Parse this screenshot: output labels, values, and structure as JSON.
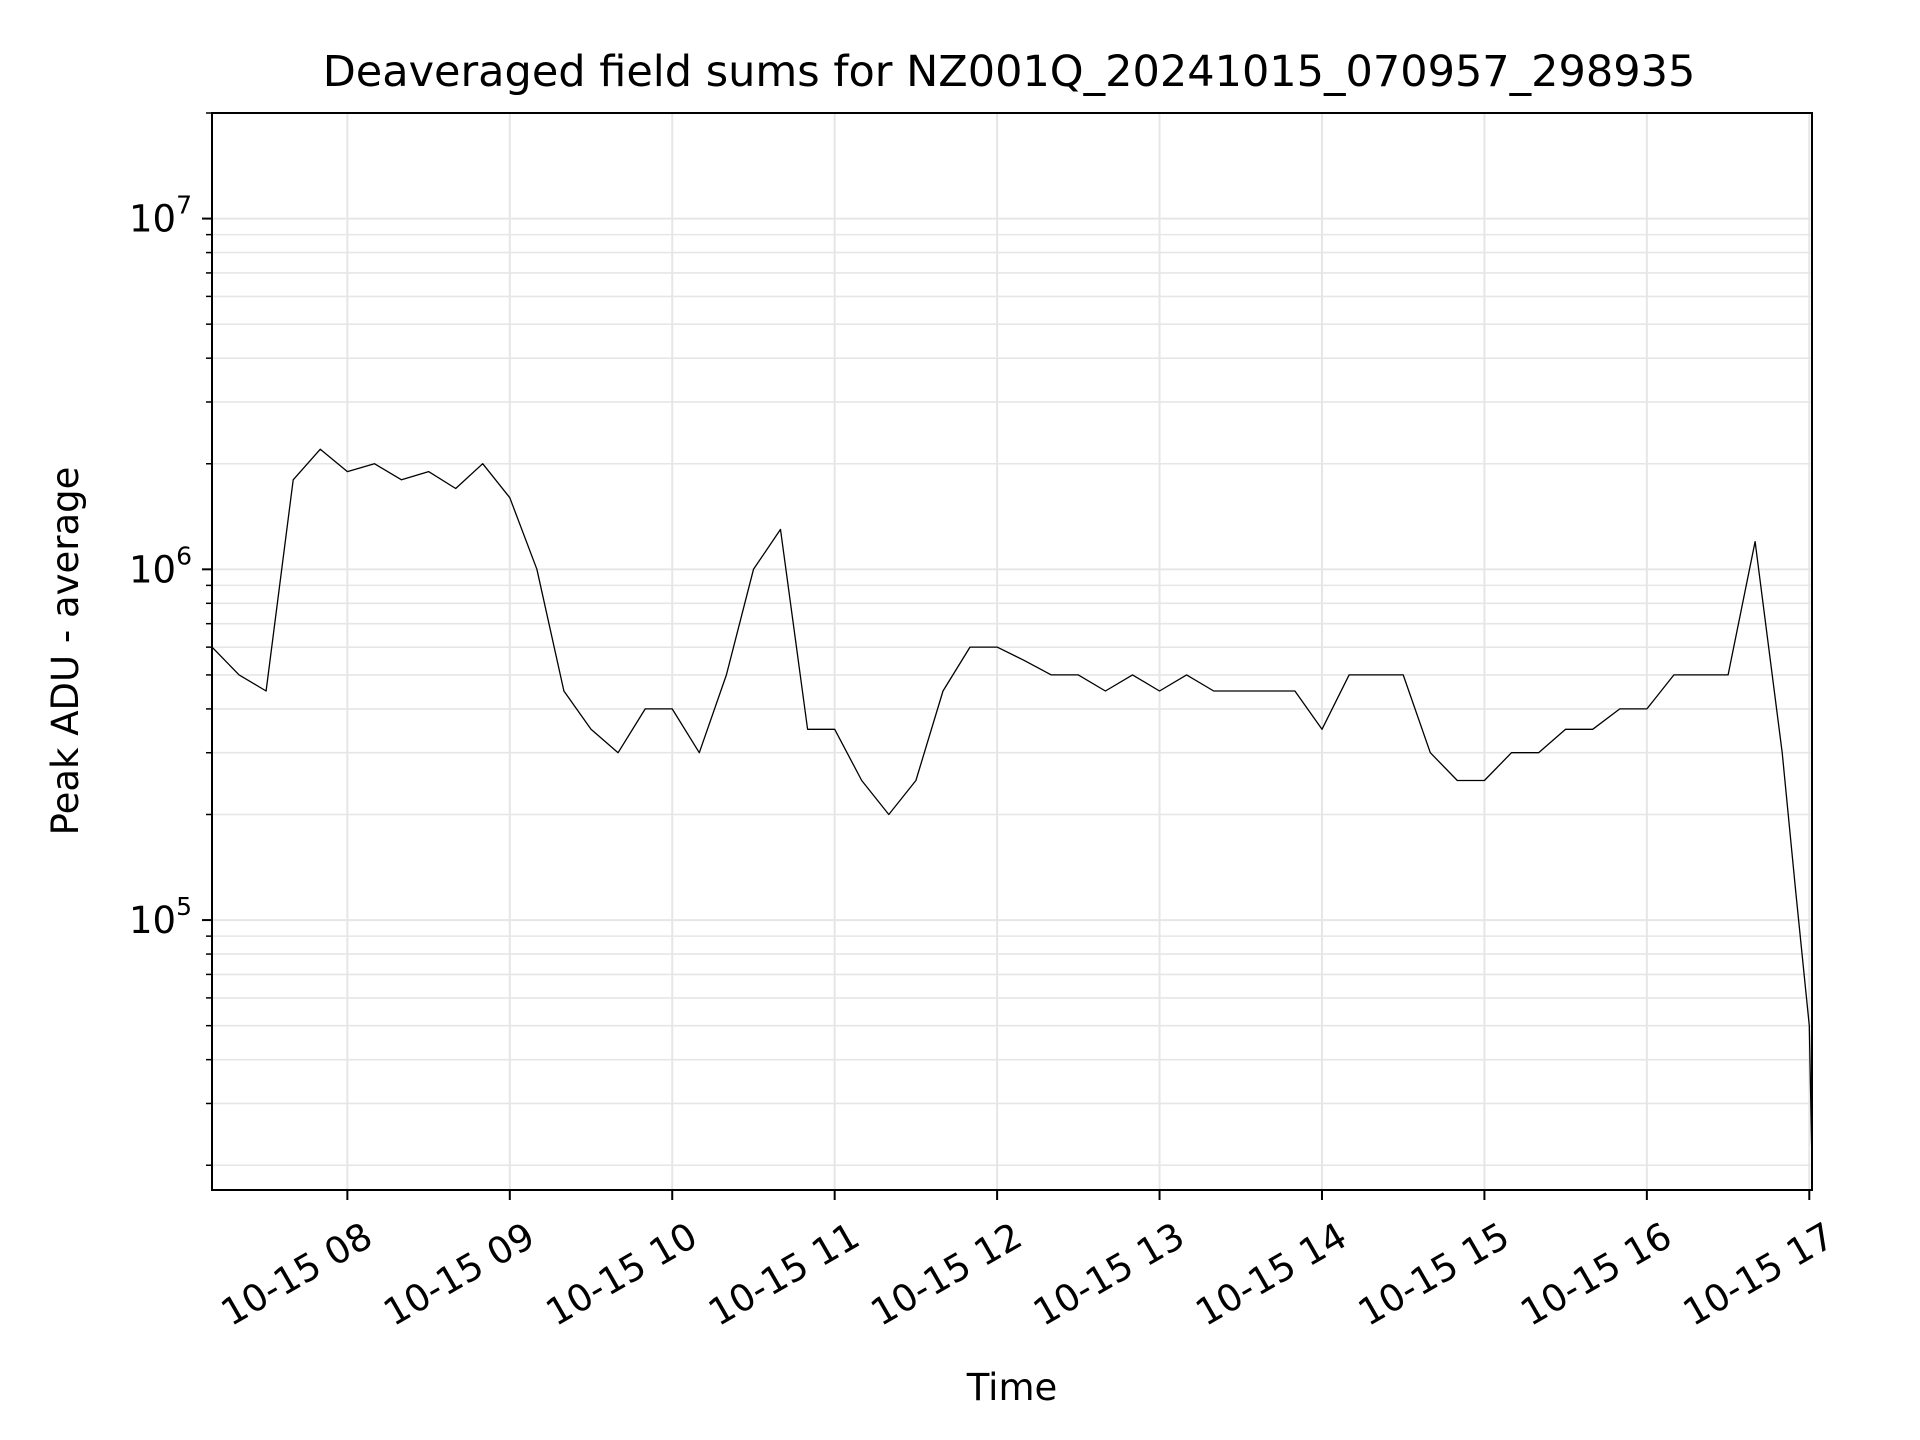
{
  "chart_data": {
    "type": "line",
    "title": "Deaveraged field sums for NZ001Q_20241015_070957_298935",
    "xlabel": "Time",
    "ylabel": "Peak ADU - average",
    "y_scale": "log",
    "ylim": [
      17000,
      20000000
    ],
    "xlim": [
      "2024-10-15 07:10",
      "2024-10-15 17:01"
    ],
    "grid": true,
    "grid_color": "#e6e6e6",
    "line_color": "#000000",
    "x_ticks": [
      {
        "time": "2024-10-15 08:00",
        "label": "10-15 08"
      },
      {
        "time": "2024-10-15 09:00",
        "label": "10-15 09"
      },
      {
        "time": "2024-10-15 10:00",
        "label": "10-15 10"
      },
      {
        "time": "2024-10-15 11:00",
        "label": "10-15 11"
      },
      {
        "time": "2024-10-15 12:00",
        "label": "10-15 12"
      },
      {
        "time": "2024-10-15 13:00",
        "label": "10-15 13"
      },
      {
        "time": "2024-10-15 14:00",
        "label": "10-15 14"
      },
      {
        "time": "2024-10-15 15:00",
        "label": "10-15 15"
      },
      {
        "time": "2024-10-15 16:00",
        "label": "10-15 16"
      },
      {
        "time": "2024-10-15 17:00",
        "label": "10-15 17"
      }
    ],
    "y_ticks": [
      {
        "value": 100000,
        "base": "10",
        "exponent": "5"
      },
      {
        "value": 1000000,
        "base": "10",
        "exponent": "6"
      },
      {
        "value": 10000000,
        "base": "10",
        "exponent": "7"
      }
    ],
    "series": [
      {
        "points": [
          [
            "2024-10-15 07:10",
            600000
          ],
          [
            "2024-10-15 07:20",
            500000
          ],
          [
            "2024-10-15 07:30",
            450000
          ],
          [
            "2024-10-15 07:40",
            1800000
          ],
          [
            "2024-10-15 07:50",
            2200000
          ],
          [
            "2024-10-15 08:00",
            1900000
          ],
          [
            "2024-10-15 08:10",
            2000000
          ],
          [
            "2024-10-15 08:20",
            1800000
          ],
          [
            "2024-10-15 08:30",
            1900000
          ],
          [
            "2024-10-15 08:40",
            1700000
          ],
          [
            "2024-10-15 08:50",
            2000000
          ],
          [
            "2024-10-15 09:00",
            1600000
          ],
          [
            "2024-10-15 09:10",
            1000000
          ],
          [
            "2024-10-15 09:20",
            450000
          ],
          [
            "2024-10-15 09:30",
            350000
          ],
          [
            "2024-10-15 09:40",
            300000
          ],
          [
            "2024-10-15 09:50",
            400000
          ],
          [
            "2024-10-15 10:00",
            400000
          ],
          [
            "2024-10-15 10:10",
            300000
          ],
          [
            "2024-10-15 10:20",
            500000
          ],
          [
            "2024-10-15 10:30",
            1000000
          ],
          [
            "2024-10-15 10:40",
            1300000
          ],
          [
            "2024-10-15 10:50",
            350000
          ],
          [
            "2024-10-15 11:00",
            350000
          ],
          [
            "2024-10-15 11:10",
            250000
          ],
          [
            "2024-10-15 11:20",
            200000
          ],
          [
            "2024-10-15 11:30",
            250000
          ],
          [
            "2024-10-15 11:40",
            450000
          ],
          [
            "2024-10-15 11:50",
            600000
          ],
          [
            "2024-10-15 12:00",
            600000
          ],
          [
            "2024-10-15 12:10",
            550000
          ],
          [
            "2024-10-15 12:20",
            500000
          ],
          [
            "2024-10-15 12:30",
            500000
          ],
          [
            "2024-10-15 12:40",
            450000
          ],
          [
            "2024-10-15 12:50",
            500000
          ],
          [
            "2024-10-15 13:00",
            450000
          ],
          [
            "2024-10-15 13:10",
            500000
          ],
          [
            "2024-10-15 13:20",
            450000
          ],
          [
            "2024-10-15 13:30",
            450000
          ],
          [
            "2024-10-15 13:40",
            450000
          ],
          [
            "2024-10-15 13:50",
            450000
          ],
          [
            "2024-10-15 14:00",
            350000
          ],
          [
            "2024-10-15 14:10",
            500000
          ],
          [
            "2024-10-15 14:20",
            500000
          ],
          [
            "2024-10-15 14:30",
            500000
          ],
          [
            "2024-10-15 14:40",
            300000
          ],
          [
            "2024-10-15 14:50",
            250000
          ],
          [
            "2024-10-15 15:00",
            250000
          ],
          [
            "2024-10-15 15:10",
            300000
          ],
          [
            "2024-10-15 15:20",
            300000
          ],
          [
            "2024-10-15 15:30",
            350000
          ],
          [
            "2024-10-15 15:40",
            350000
          ],
          [
            "2024-10-15 15:50",
            400000
          ],
          [
            "2024-10-15 16:00",
            400000
          ],
          [
            "2024-10-15 16:10",
            500000
          ],
          [
            "2024-10-15 16:20",
            500000
          ],
          [
            "2024-10-15 16:30",
            500000
          ],
          [
            "2024-10-15 16:40",
            1200000
          ],
          [
            "2024-10-15 16:50",
            300000
          ],
          [
            "2024-10-15 16:55",
            120000
          ],
          [
            "2024-10-15 17:00",
            50000
          ],
          [
            "2024-10-15 17:01",
            20000
          ]
        ]
      }
    ]
  }
}
